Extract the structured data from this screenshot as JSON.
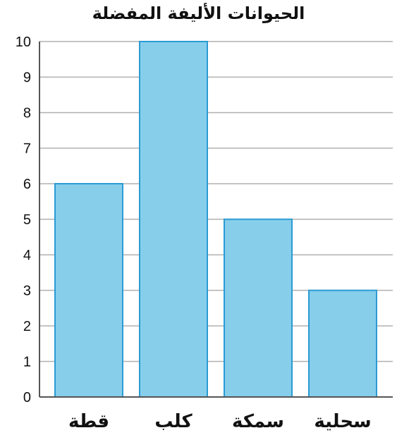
{
  "chart_data": {
    "type": "bar",
    "title": "الحيوانات الأليفة المفضلة",
    "xlabel": "",
    "ylabel": "",
    "categories": [
      "قطة",
      "كلب",
      "سمكة",
      "سحلية"
    ],
    "values": [
      6,
      10,
      5,
      3
    ],
    "ylim": [
      0,
      10
    ],
    "yticks": [
      "0",
      "1",
      "2",
      "3",
      "4",
      "5",
      "6",
      "7",
      "8",
      "9",
      "10"
    ],
    "grid": true,
    "bar_color": "#87CEEB",
    "bar_edge_color": "#2A9BD3",
    "grid_color": "#B0B0B0",
    "axis_color": "#555555"
  }
}
